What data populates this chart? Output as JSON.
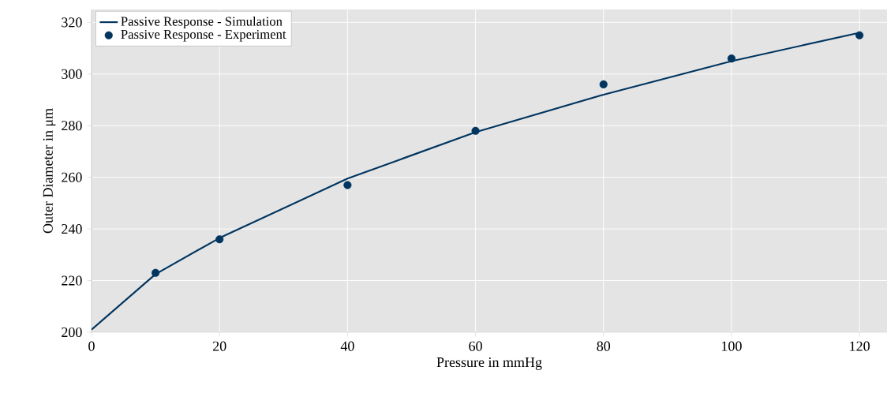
{
  "chart_data": {
    "type": "line",
    "xlabel": "Pressure in mmHg",
    "ylabel": "Outer Diameter in μm",
    "xlim": [
      0,
      124.3
    ],
    "ylim": [
      200,
      325
    ],
    "xticks": [
      0,
      20,
      40,
      60,
      80,
      100,
      120
    ],
    "yticks": [
      200,
      220,
      240,
      260,
      280,
      300,
      320
    ],
    "grid": true,
    "legend": "top left",
    "series": [
      {
        "name": "Passive Response - Simulation",
        "color": "#003560",
        "marker": "none",
        "line_style": "solid",
        "x": [
          0,
          10,
          20,
          40,
          60,
          80,
          100,
          120
        ],
        "values": [
          201,
          222.5,
          236.5,
          259.5,
          277.5,
          292,
          305,
          316
        ]
      },
      {
        "name": "Passive Response - Experiment",
        "type": "scatter",
        "color": "#003560",
        "marker": "circle",
        "x": [
          10,
          20,
          40,
          60,
          80,
          100,
          120
        ],
        "values": [
          223,
          236,
          257,
          278,
          296,
          306,
          315
        ]
      }
    ]
  }
}
